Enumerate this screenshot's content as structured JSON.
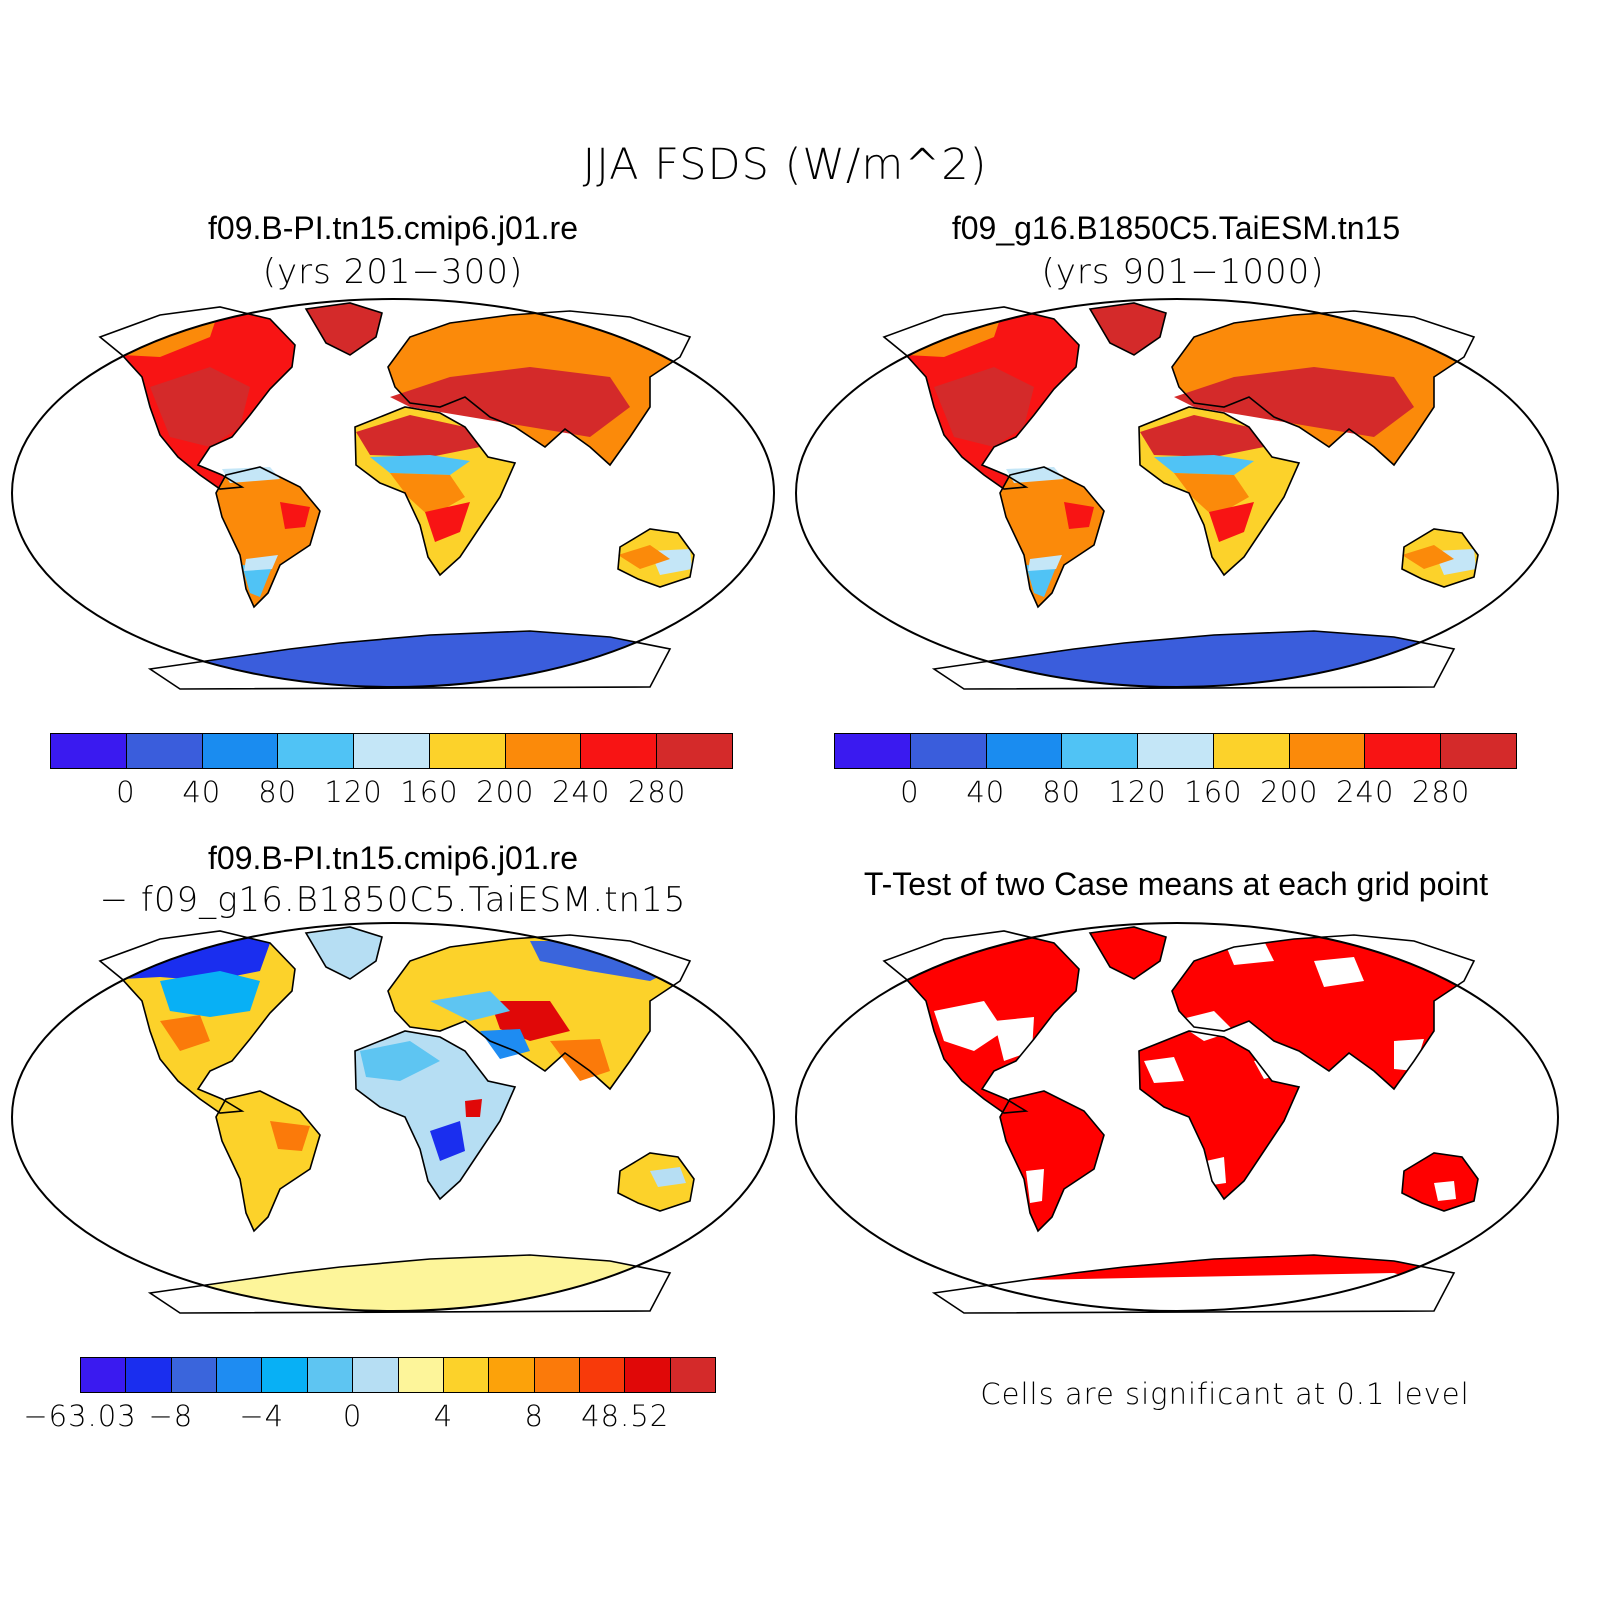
{
  "figure": {
    "title": "JJA FSDS (W/m^2)"
  },
  "panels": {
    "case1": {
      "title": "f09.B-PI.tn15.cmip6.j01.re",
      "subtitle": "(yrs 201−300)"
    },
    "case2": {
      "title": "f09_g16.B1850C5.TaiESM.tn15",
      "subtitle": "(yrs 901−1000)"
    },
    "diff": {
      "title": "f09.B-PI.tn15.cmip6.j01.re",
      "subtitle": "− f09_g16.B1850C5.TaiESM.tn15"
    },
    "ttest": {
      "title": "T-Test of two Case means at each grid point",
      "note": "Cells are significant at 0.1 level"
    }
  },
  "colorbars": {
    "fsds": {
      "colors": [
        "#3a1af0",
        "#3a5ddc",
        "#1a8cf0",
        "#50c3f5",
        "#c4e6f7",
        "#fcd22a",
        "#fb8a0a",
        "#f81414",
        "#d42a2a"
      ],
      "labels": [
        "0",
        "40",
        "80",
        "120",
        "160",
        "200",
        "240",
        "280"
      ]
    },
    "diff": {
      "colors": [
        "#3a1af0",
        "#1a2eef",
        "#3a65dc",
        "#1e8cf2",
        "#08b0f5",
        "#5ec5f2",
        "#b6def3",
        "#fdf59a",
        "#fcd22a",
        "#fca20a",
        "#fb7a0a",
        "#f83a0a",
        "#e00808",
        "#d42a2a"
      ],
      "labels": [
        "−63.03",
        "−8",
        "−4",
        "0",
        "4",
        "8",
        "48.52"
      ]
    }
  },
  "map_colors": {
    "ocean": "#ffffff",
    "outline": "#000000",
    "significant": "#ff0000"
  }
}
